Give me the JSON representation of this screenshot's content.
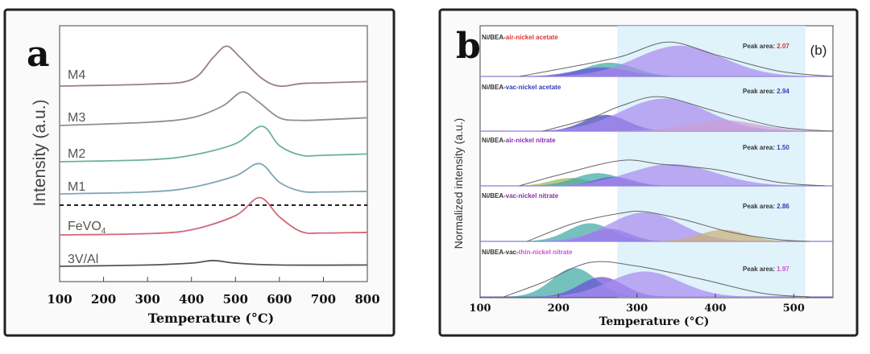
{
  "chart_data": [
    {
      "panel_label": "a",
      "type": "line",
      "xlabel": "Temperature (°C)",
      "ylabel": "Intensity (a.u.)",
      "xlim": [
        100,
        800
      ],
      "xticks": [
        "100",
        "200",
        "300",
        "400",
        "500",
        "600",
        "700",
        "800"
      ],
      "series": [
        {
          "name": "M4",
          "color": "#9a7e86",
          "baseline": 0.0,
          "points": [
            [
              100,
              0.0
            ],
            [
              300,
              0.03
            ],
            [
              400,
              0.1
            ],
            [
              450,
              0.45
            ],
            [
              480,
              0.62
            ],
            [
              510,
              0.45
            ],
            [
              560,
              0.12
            ],
            [
              600,
              0.0
            ],
            [
              650,
              0.04
            ],
            [
              700,
              0.05
            ],
            [
              800,
              0.07
            ]
          ]
        },
        {
          "name": "M3",
          "color": "#8f8f8f",
          "baseline": 0.0,
          "points": [
            [
              100,
              0.0
            ],
            [
              300,
              0.05
            ],
            [
              400,
              0.12
            ],
            [
              470,
              0.3
            ],
            [
              515,
              0.52
            ],
            [
              550,
              0.38
            ],
            [
              600,
              0.12
            ],
            [
              650,
              0.08
            ],
            [
              700,
              0.09
            ],
            [
              800,
              0.12
            ]
          ]
        },
        {
          "name": "M2",
          "color": "#6cb39a",
          "baseline": 0.0,
          "points": [
            [
              100,
              0.0
            ],
            [
              300,
              0.03
            ],
            [
              400,
              0.1
            ],
            [
              500,
              0.28
            ],
            [
              560,
              0.55
            ],
            [
              600,
              0.25
            ],
            [
              650,
              0.1
            ],
            [
              700,
              0.1
            ],
            [
              800,
              0.12
            ]
          ]
        },
        {
          "name": "M1",
          "color": "#7fa7b5",
          "baseline": 0.0,
          "points": [
            [
              100,
              0.0
            ],
            [
              300,
              0.03
            ],
            [
              400,
              0.1
            ],
            [
              500,
              0.28
            ],
            [
              555,
              0.47
            ],
            [
              600,
              0.18
            ],
            [
              650,
              0.04
            ],
            [
              700,
              0.03
            ],
            [
              800,
              0.04
            ]
          ]
        },
        {
          "name": "FeVO4",
          "color": "#d0687a",
          "baseline": 0.0,
          "points": [
            [
              100,
              0.0
            ],
            [
              300,
              0.02
            ],
            [
              400,
              0.08
            ],
            [
              500,
              0.3
            ],
            [
              555,
              0.58
            ],
            [
              600,
              0.28
            ],
            [
              650,
              0.05
            ],
            [
              700,
              0.03
            ],
            [
              800,
              0.04
            ]
          ]
        },
        {
          "name": "3V/Al",
          "color": "#555555",
          "baseline": 0.0,
          "points": [
            [
              100,
              0.0
            ],
            [
              300,
              0.02
            ],
            [
              400,
              0.05
            ],
            [
              450,
              0.09
            ],
            [
              500,
              0.05
            ],
            [
              600,
              0.02
            ],
            [
              800,
              0.02
            ]
          ]
        }
      ],
      "labels": {
        "M4": "M4",
        "M3": "M3",
        "M2": "M2",
        "M1": "M1",
        "FeVO4_main": "FeVO",
        "FeVO4_sub": "4",
        "V3Al": "3V/Al"
      }
    },
    {
      "panel_label": "b",
      "panel_tag": "(b)",
      "type": "area",
      "xlabel": "Temperature (°C)",
      "ylabel": "Normalized intensity (a.u.)",
      "xlim": [
        100,
        550
      ],
      "xticks": [
        "100",
        "200",
        "300",
        "400",
        "500"
      ],
      "highlight_range": [
        275,
        515
      ],
      "rows": [
        {
          "name_prefix": "Ni/BEA-",
          "name_color_part": "air-nickel acetate",
          "name_suffix": "",
          "name_color": "#e0322f",
          "peak_label": "Peak area: ",
          "peak_value": "2.07",
          "peak_color": "#e0322f",
          "envelope": [
            [
              150,
              0.0
            ],
            [
              220,
              0.28
            ],
            [
              280,
              0.55
            ],
            [
              340,
              0.95
            ],
            [
              400,
              0.6
            ],
            [
              480,
              0.15
            ],
            [
              550,
              0.0
            ]
          ],
          "components": [
            {
              "color": "#3fa9a5",
              "center": 265,
              "width": 32,
              "height": 0.38
            },
            {
              "color": "#6a4fd6",
              "center": 255,
              "width": 35,
              "height": 0.25
            },
            {
              "color": "#a98cf0",
              "center": 355,
              "width": 55,
              "height": 0.85
            }
          ]
        },
        {
          "name_prefix": "Ni/BEA-",
          "name_color_part": "vac-nickel acetate",
          "name_suffix": "",
          "name_color": "#3340b8",
          "peak_label": "Peak area: ",
          "peak_value": "2.94",
          "peak_color": "#3340b8",
          "envelope": [
            [
              180,
              0.0
            ],
            [
              240,
              0.35
            ],
            [
              280,
              0.7
            ],
            [
              330,
              0.95
            ],
            [
              400,
              0.55
            ],
            [
              480,
              0.12
            ],
            [
              550,
              0.0
            ]
          ],
          "components": [
            {
              "color": "#3d3fb8",
              "center": 260,
              "width": 28,
              "height": 0.45
            },
            {
              "color": "#a98cf0",
              "center": 335,
              "width": 55,
              "height": 0.9
            },
            {
              "color": "#c9a0d6",
              "center": 410,
              "width": 45,
              "height": 0.3
            }
          ]
        },
        {
          "name_prefix": "Ni/BEA-",
          "name_color_part": "air-nickel nitrate",
          "name_suffix": "",
          "name_color": "#8b2fa8",
          "peak_label": "Peak area: ",
          "peak_value": "1.50",
          "peak_color": "#3340b8",
          "envelope": [
            [
              150,
              0.0
            ],
            [
              200,
              0.3
            ],
            [
              280,
              0.7
            ],
            [
              330,
              0.6
            ],
            [
              400,
              0.45
            ],
            [
              480,
              0.1
            ],
            [
              540,
              0.0
            ]
          ],
          "components": [
            {
              "color": "#9bb45a",
              "center": 215,
              "width": 25,
              "height": 0.22
            },
            {
              "color": "#3fa9a5",
              "center": 250,
              "width": 30,
              "height": 0.35
            },
            {
              "color": "#6a4fd6",
              "center": 270,
              "width": 25,
              "height": 0.25
            },
            {
              "color": "#a98cf0",
              "center": 345,
              "width": 55,
              "height": 0.6
            }
          ]
        },
        {
          "name_prefix": "Ni/BEA-",
          "name_color_part": "vac-nickel nitrate",
          "name_suffix": "",
          "name_color": "#8b2fa8",
          "peak_label": "Peak area: ",
          "peak_value": "2.86",
          "peak_color": "#3340b8",
          "envelope": [
            [
              160,
              0.0
            ],
            [
              220,
              0.5
            ],
            [
              280,
              0.78
            ],
            [
              310,
              0.82
            ],
            [
              360,
              0.6
            ],
            [
              420,
              0.25
            ],
            [
              480,
              0.05
            ],
            [
              520,
              0.0
            ]
          ],
          "components": [
            {
              "color": "#3fa9a5",
              "center": 240,
              "width": 28,
              "height": 0.5
            },
            {
              "color": "#6a4fd6",
              "center": 265,
              "width": 25,
              "height": 0.35
            },
            {
              "color": "#a98cf0",
              "center": 310,
              "width": 45,
              "height": 0.8
            },
            {
              "color": "#c7b07a",
              "center": 410,
              "width": 30,
              "height": 0.32
            }
          ]
        },
        {
          "name_prefix": "Ni/BEA-vac-",
          "name_color_part": "thin-nickel nitrate",
          "name_suffix": "",
          "name_color": "#d14fd6",
          "peak_label": "Peak area: ",
          "peak_value": "1.97",
          "peak_color": "#d14fd6",
          "envelope": [
            [
              130,
              0.0
            ],
            [
              180,
              0.4
            ],
            [
              240,
              0.95
            ],
            [
              300,
              0.85
            ],
            [
              380,
              0.5
            ],
            [
              460,
              0.1
            ],
            [
              520,
              0.0
            ]
          ],
          "components": [
            {
              "color": "#3fa9a5",
              "center": 220,
              "width": 28,
              "height": 0.8
            },
            {
              "color": "#6a4fd6",
              "center": 255,
              "width": 28,
              "height": 0.55
            },
            {
              "color": "#a98cf0",
              "center": 310,
              "width": 45,
              "height": 0.7
            }
          ]
        }
      ]
    }
  ]
}
